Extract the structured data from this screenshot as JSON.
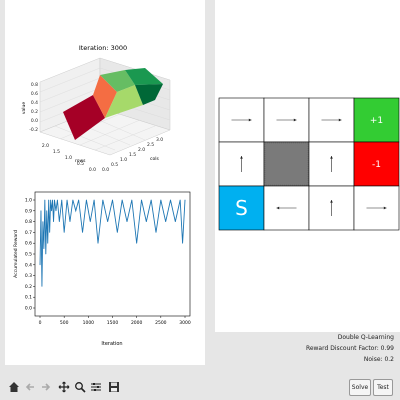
{
  "surface_plot": {
    "title": "Iteration: 3000",
    "z_label": "value",
    "x_label": "cols",
    "y_label": "rows",
    "z_ticks": [
      "0.8",
      "0.6",
      "0.4",
      "0.2",
      "0.0",
      "-0.2"
    ],
    "row_ticks": [
      "2.0",
      "1.5",
      "1.0",
      "0.5",
      "0.0"
    ],
    "col_ticks": [
      "0.0",
      "0.5",
      "1.0",
      "1.5",
      "2.0",
      "2.5",
      "3.0"
    ]
  },
  "chart_data": {
    "type": "line",
    "title": "",
    "xlabel": "Iteration",
    "ylabel": "Accumulated Reward",
    "xlim": [
      0,
      3000
    ],
    "ylim": [
      0.0,
      1.0
    ],
    "xticks": [
      0,
      500,
      1000,
      1500,
      2000,
      2500,
      3000
    ],
    "yticks": [
      0.0,
      0.1,
      0.2,
      0.3,
      0.4,
      0.5,
      0.6,
      0.7,
      0.8,
      0.9,
      1.0
    ],
    "color": "#1f77b4",
    "series": [
      {
        "x": [
          1,
          20,
          40,
          60,
          80,
          100,
          120,
          140,
          160,
          180,
          200,
          220,
          240,
          260,
          280,
          300,
          330,
          360,
          400,
          450,
          500,
          560,
          620,
          680,
          740,
          800,
          880,
          960,
          1040,
          1120,
          1200,
          1300,
          1400,
          1500,
          1600,
          1700,
          1800,
          1900,
          2000,
          2100,
          2200,
          2300,
          2400,
          2500,
          2600,
          2700,
          2800,
          2900,
          2950,
          3000
        ],
        "y": [
          0.4,
          0.9,
          0.2,
          0.8,
          0.55,
          1.0,
          0.5,
          0.9,
          0.6,
          1.0,
          0.7,
          1.0,
          0.9,
          1.0,
          0.8,
          1.0,
          0.9,
          1.0,
          0.8,
          1.0,
          0.7,
          1.0,
          0.8,
          1.0,
          0.9,
          1.0,
          0.7,
          1.0,
          0.8,
          1.0,
          0.6,
          1.0,
          0.8,
          1.0,
          0.7,
          1.0,
          0.8,
          1.0,
          0.6,
          1.0,
          0.8,
          1.0,
          0.7,
          1.0,
          0.8,
          1.0,
          0.8,
          1.0,
          0.6,
          1.0
        ]
      }
    ]
  },
  "grid": {
    "rows": 3,
    "cols": 4,
    "cells": [
      {
        "type": "arrow",
        "dir": "right",
        "label": ""
      },
      {
        "type": "arrow",
        "dir": "right",
        "label": ""
      },
      {
        "type": "arrow",
        "dir": "right",
        "label": ""
      },
      {
        "type": "terminal",
        "label": "+1",
        "color": "#33cc33"
      },
      {
        "type": "arrow",
        "dir": "up",
        "label": ""
      },
      {
        "type": "wall",
        "label": "",
        "color": "#808080"
      },
      {
        "type": "arrow",
        "dir": "up",
        "label": ""
      },
      {
        "type": "terminal",
        "label": "-1",
        "color": "#ff0000"
      },
      {
        "type": "start",
        "label": "S",
        "color": "#00b0f0"
      },
      {
        "type": "arrow",
        "dir": "left",
        "label": ""
      },
      {
        "type": "arrow",
        "dir": "up",
        "label": ""
      },
      {
        "type": "arrow",
        "dir": "right",
        "label": ""
      }
    ]
  },
  "info": {
    "algorithm": "Double Q-Learning",
    "discount": "Reward Discount Factor: 0.99",
    "noise": "Noise: 0.2"
  },
  "toolbar": {
    "icons": [
      "home-icon",
      "back-arrow-icon",
      "forward-arrow-icon",
      "pan-icon",
      "zoom-icon",
      "configure-icon",
      "save-icon"
    ]
  },
  "buttons": {
    "solve": "Solve",
    "test": "Test"
  }
}
